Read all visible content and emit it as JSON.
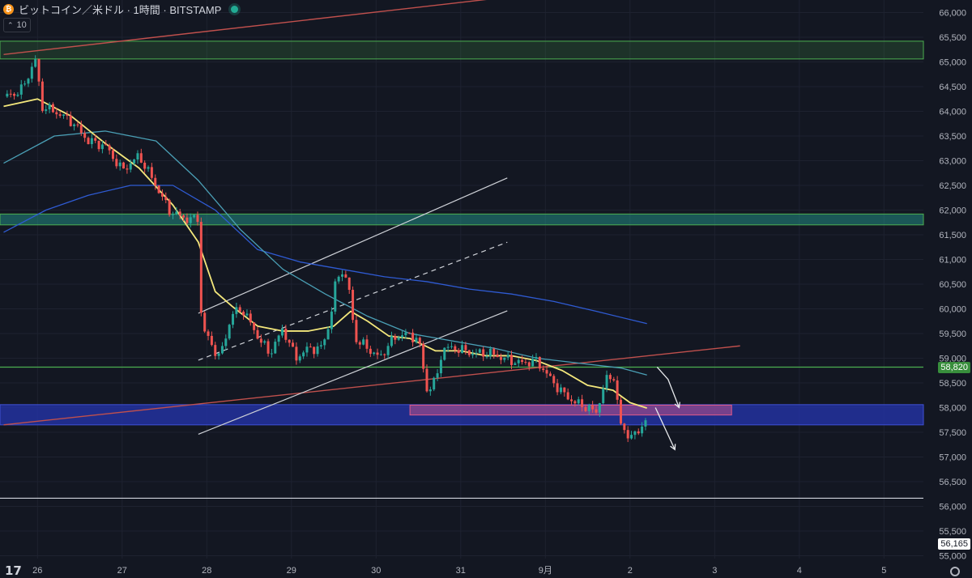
{
  "header": {
    "title": "ビットコイン／米ドル · 1時間 · BITSTAMP",
    "coin_glyph": "₿",
    "indicator_value": "10"
  },
  "price_labels": {
    "green_level": "58,820",
    "white_level": "56,165"
  },
  "colors": {
    "background": "#131722",
    "candle_up": "#26a69a",
    "candle_down": "#ef5350",
    "ma_fast": "#f4e87c",
    "ma_mid": "#4a9fb5",
    "ma_slow": "#2f5bd3",
    "green_level": "#4caf50",
    "support_zone": "#2433a8",
    "pink_zone": "#e05a8a",
    "resistance_line": "#c0504d"
  },
  "chart_data": {
    "type": "candlestick",
    "title": "ビットコイン／米ドル · 1時間 · BITSTAMP",
    "ylim": [
      54900,
      66250
    ],
    "y_ticks": [
      55000,
      55500,
      56000,
      56500,
      57000,
      57500,
      58000,
      58500,
      59000,
      59500,
      60000,
      60500,
      61000,
      61500,
      62000,
      62500,
      63000,
      63500,
      64000,
      64500,
      65000,
      65500,
      66000
    ],
    "x_ticks": [
      {
        "label": "26",
        "x": 0.4
      },
      {
        "label": "27",
        "x": 1.4
      },
      {
        "label": "28",
        "x": 2.4
      },
      {
        "label": "29",
        "x": 3.4
      },
      {
        "label": "30",
        "x": 4.4
      },
      {
        "label": "31",
        "x": 5.4
      },
      {
        "label": "9月",
        "x": 6.4
      },
      {
        "label": "2",
        "x": 7.4
      },
      {
        "label": "3",
        "x": 8.4
      },
      {
        "label": "4",
        "x": 9.4
      },
      {
        "label": "5",
        "x": 10.4
      }
    ],
    "price_path": [
      [
        0,
        64300
      ],
      [
        0.2,
        64400
      ],
      [
        0.38,
        65050
      ],
      [
        0.45,
        64100
      ],
      [
        0.6,
        64000
      ],
      [
        0.8,
        63800
      ],
      [
        1.0,
        63400
      ],
      [
        1.2,
        63300
      ],
      [
        1.4,
        62800
      ],
      [
        1.6,
        63100
      ],
      [
        1.8,
        62500
      ],
      [
        1.95,
        62000
      ],
      [
        2.05,
        61900
      ],
      [
        2.2,
        61800
      ],
      [
        2.3,
        61850
      ],
      [
        2.33,
        60000
      ],
      [
        2.35,
        59600
      ],
      [
        2.45,
        59300
      ],
      [
        2.55,
        59000
      ],
      [
        2.7,
        59900
      ],
      [
        2.82,
        60000
      ],
      [
        2.95,
        59600
      ],
      [
        3.05,
        59300
      ],
      [
        3.15,
        59100
      ],
      [
        3.3,
        59600
      ],
      [
        3.45,
        59000
      ],
      [
        3.6,
        59200
      ],
      [
        3.75,
        59200
      ],
      [
        3.85,
        59700
      ],
      [
        3.92,
        60500
      ],
      [
        4.0,
        60800
      ],
      [
        4.08,
        60400
      ],
      [
        4.15,
        59400
      ],
      [
        4.3,
        59200
      ],
      [
        4.45,
        59000
      ],
      [
        4.55,
        59300
      ],
      [
        4.7,
        59500
      ],
      [
        4.9,
        59400
      ],
      [
        5.0,
        58350
      ],
      [
        5.12,
        58600
      ],
      [
        5.18,
        59200
      ],
      [
        5.35,
        59200
      ],
      [
        5.55,
        59100
      ],
      [
        5.75,
        59100
      ],
      [
        5.9,
        59000
      ],
      [
        6.1,
        58900
      ],
      [
        6.3,
        58950
      ],
      [
        6.45,
        58600
      ],
      [
        6.6,
        58300
      ],
      [
        6.75,
        58100
      ],
      [
        6.9,
        58000
      ],
      [
        7.0,
        57900
      ],
      [
        7.1,
        58500
      ],
      [
        7.2,
        58700
      ],
      [
        7.3,
        57550
      ],
      [
        7.45,
        57400
      ],
      [
        7.6,
        57800
      ]
    ],
    "ma_fast": [
      [
        0,
        64100
      ],
      [
        0.4,
        64250
      ],
      [
        0.8,
        63900
      ],
      [
        1.2,
        63350
      ],
      [
        1.6,
        62850
      ],
      [
        2.0,
        62100
      ],
      [
        2.3,
        61350
      ],
      [
        2.5,
        60350
      ],
      [
        2.7,
        60050
      ],
      [
        3.0,
        59650
      ],
      [
        3.3,
        59550
      ],
      [
        3.6,
        59550
      ],
      [
        3.9,
        59650
      ],
      [
        4.1,
        59950
      ],
      [
        4.3,
        59750
      ],
      [
        4.55,
        59450
      ],
      [
        4.8,
        59400
      ],
      [
        5.1,
        59150
      ],
      [
        5.4,
        59150
      ],
      [
        5.7,
        59050
      ],
      [
        6.0,
        59050
      ],
      [
        6.3,
        58950
      ],
      [
        6.6,
        58750
      ],
      [
        6.9,
        58450
      ],
      [
        7.2,
        58350
      ],
      [
        7.4,
        58100
      ],
      [
        7.6,
        57990
      ]
    ],
    "ma_mid": [
      [
        0,
        62950
      ],
      [
        0.6,
        63500
      ],
      [
        1.2,
        63600
      ],
      [
        1.8,
        63400
      ],
      [
        2.3,
        62600
      ],
      [
        2.8,
        61600
      ],
      [
        3.3,
        60800
      ],
      [
        3.8,
        60300
      ],
      [
        4.3,
        59850
      ],
      [
        4.8,
        59500
      ],
      [
        5.3,
        59350
      ],
      [
        5.8,
        59200
      ],
      [
        6.3,
        59000
      ],
      [
        6.8,
        58900
      ],
      [
        7.3,
        58800
      ],
      [
        7.6,
        58660
      ]
    ],
    "ma_slow": [
      [
        0,
        61550
      ],
      [
        0.5,
        62000
      ],
      [
        1.0,
        62300
      ],
      [
        1.5,
        62500
      ],
      [
        2.0,
        62500
      ],
      [
        2.5,
        62000
      ],
      [
        3.0,
        61200
      ],
      [
        3.5,
        60950
      ],
      [
        4.0,
        60800
      ],
      [
        4.5,
        60650
      ],
      [
        5.0,
        60550
      ],
      [
        5.5,
        60400
      ],
      [
        6.0,
        60300
      ],
      [
        6.5,
        60150
      ],
      [
        7.0,
        59950
      ],
      [
        7.6,
        59700
      ]
    ],
    "levels": {
      "green_line": 58820,
      "white_line": 56165,
      "green_zone_top": [
        65420,
        65060
      ],
      "green_zone_mid": [
        61920,
        61700
      ],
      "blue_zone": [
        58060,
        57650
      ],
      "pink_zone": [
        58050,
        57850
      ]
    },
    "trend_lines": [
      {
        "kind": "resistance",
        "from": [
          0,
          65150
        ],
        "to": [
          6.65,
          66450
        ]
      },
      {
        "kind": "support",
        "from": [
          0,
          57650
        ],
        "to": [
          8.7,
          59250
        ]
      },
      {
        "kind": "channel_upper",
        "from": [
          2.3,
          59910
        ],
        "to": [
          5.95,
          62650
        ]
      },
      {
        "kind": "channel_mid",
        "from": [
          2.3,
          58960
        ],
        "to": [
          5.95,
          61350
        ]
      },
      {
        "kind": "channel_lower",
        "from": [
          2.3,
          57460
        ],
        "to": [
          5.95,
          59960
        ]
      }
    ],
    "arrows": [
      {
        "from": [
          7.72,
          58820
        ],
        "mid": [
          7.85,
          58570
        ],
        "to": [
          7.98,
          58000
        ]
      },
      {
        "from": [
          7.7,
          58000
        ],
        "to": [
          7.93,
          57150
        ]
      }
    ]
  }
}
